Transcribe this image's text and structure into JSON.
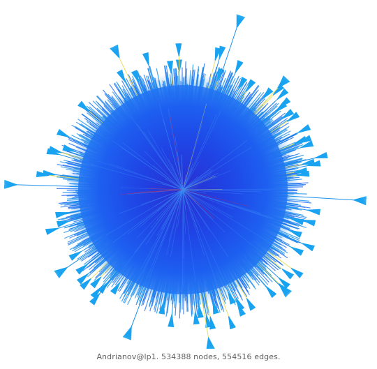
{
  "caption": "Andrianov@lp1. 534388 nodes, 554516 edges.",
  "graph": {
    "nodes": 534388,
    "edges": 554516,
    "colors": {
      "background": "#ffffff",
      "core": "#1a3fe0",
      "halo": "#1f6ef0",
      "spike": "#1b8fea",
      "tip": "#1aa3f0",
      "accent_yellow": "#e8e060",
      "accent_red": "#d02a4a"
    }
  }
}
